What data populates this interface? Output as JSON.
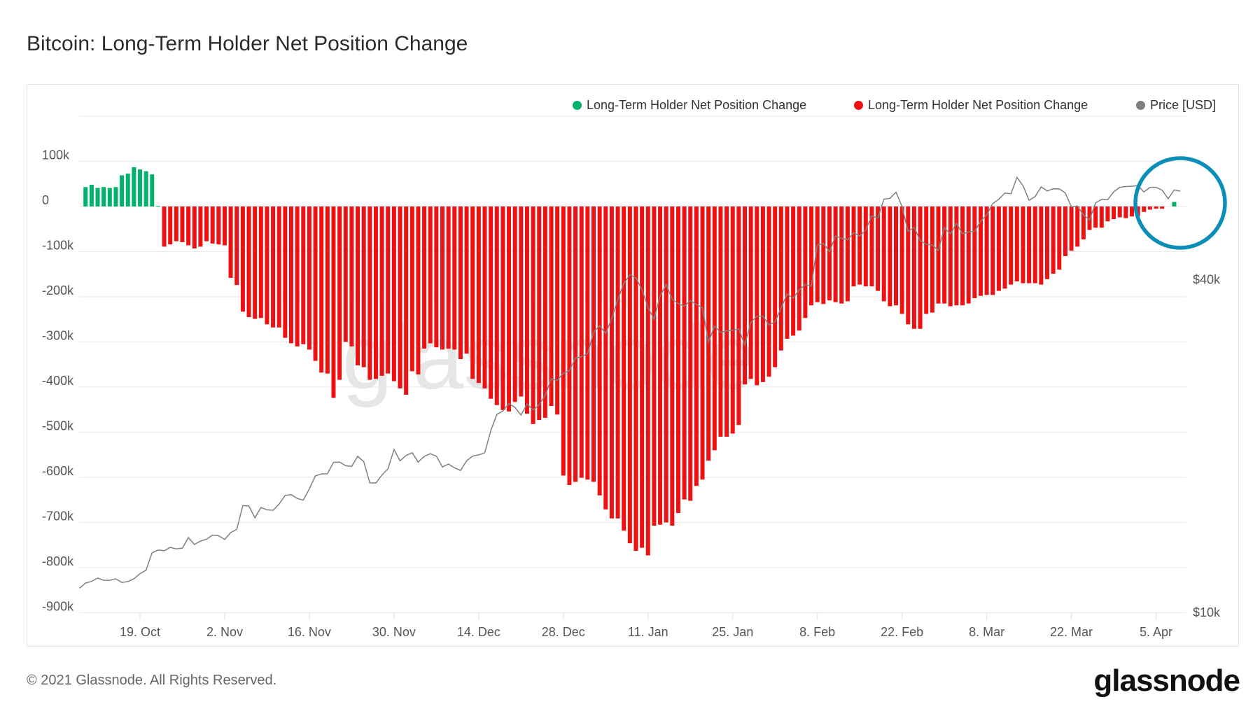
{
  "title": "Bitcoin: Long-Term Holder Net Position Change",
  "footer": "© 2021 Glassnode. All Rights Reserved.",
  "logo": "glassnode",
  "watermark": "glassnode",
  "legend": [
    {
      "label": "Long-Term Holder Net Position Change",
      "color": "#00b26b"
    },
    {
      "label": "Long-Term Holder Net Position Change",
      "color": "#ee1111"
    },
    {
      "label": "Price [USD]",
      "color": "#808080"
    }
  ],
  "annotation": {
    "shape": "circle",
    "color": "#0b8fb8"
  },
  "chart_data": {
    "type": "bar+line",
    "title": "Bitcoin: Long-Term Holder Net Position Change",
    "x_ticks": [
      "19. Oct",
      "2. Nov",
      "16. Nov",
      "30. Nov",
      "14. Dec",
      "28. Dec",
      "11. Jan",
      "25. Jan",
      "8. Feb",
      "22. Feb",
      "8. Mar",
      "22. Mar",
      "5. Apr"
    ],
    "x_tick_dates": [
      "2020-10-19",
      "2020-11-02",
      "2020-11-16",
      "2020-11-30",
      "2020-12-14",
      "2020-12-28",
      "2021-01-11",
      "2021-01-25",
      "2021-02-08",
      "2021-02-22",
      "2021-03-08",
      "2021-03-22",
      "2021-04-05"
    ],
    "y_left": {
      "ticks": [
        200000,
        100000,
        0,
        -100000,
        -200000,
        -300000,
        -400000,
        -500000,
        -600000,
        -700000,
        -800000,
        -900000
      ],
      "tick_labels": [
        "",
        "100k",
        "0",
        "-100k",
        "-200k",
        "-300k",
        "-400k",
        "-500k",
        "-600k",
        "-700k",
        "-800k",
        "-900k"
      ],
      "ylim": [
        -900000,
        200000
      ]
    },
    "y_right": {
      "scale": "log",
      "tick_labels": [
        "$40k",
        "$10k"
      ],
      "tick_values": [
        40000,
        10000
      ]
    },
    "grid": true,
    "legend_position": "top-right",
    "positive_color": "#00b26b",
    "negative_color": "#ee1111",
    "price_color": "#808080",
    "dates": [
      "2020-10-09",
      "2020-10-10",
      "2020-10-11",
      "2020-10-12",
      "2020-10-13",
      "2020-10-14",
      "2020-10-15",
      "2020-10-16",
      "2020-10-17",
      "2020-10-18",
      "2020-10-19",
      "2020-10-20",
      "2020-10-21",
      "2020-10-22",
      "2020-10-23",
      "2020-10-24",
      "2020-10-25",
      "2020-10-26",
      "2020-10-27",
      "2020-10-28",
      "2020-10-29",
      "2020-10-30",
      "2020-10-31",
      "2020-11-01",
      "2020-11-02",
      "2020-11-03",
      "2020-11-04",
      "2020-11-05",
      "2020-11-06",
      "2020-11-07",
      "2020-11-08",
      "2020-11-09",
      "2020-11-10",
      "2020-11-11",
      "2020-11-12",
      "2020-11-13",
      "2020-11-14",
      "2020-11-15",
      "2020-11-16",
      "2020-11-17",
      "2020-11-18",
      "2020-11-19",
      "2020-11-20",
      "2020-11-21",
      "2020-11-22",
      "2020-11-23",
      "2020-11-24",
      "2020-11-25",
      "2020-11-26",
      "2020-11-27",
      "2020-11-28",
      "2020-11-29",
      "2020-11-30",
      "2020-12-01",
      "2020-12-02",
      "2020-12-03",
      "2020-12-04",
      "2020-12-05",
      "2020-12-06",
      "2020-12-07",
      "2020-12-08",
      "2020-12-09",
      "2020-12-10",
      "2020-12-11",
      "2020-12-12",
      "2020-12-13",
      "2020-12-14",
      "2020-12-15",
      "2020-12-16",
      "2020-12-17",
      "2020-12-18",
      "2020-12-19",
      "2020-12-20",
      "2020-12-21",
      "2020-12-22",
      "2020-12-23",
      "2020-12-24",
      "2020-12-25",
      "2020-12-26",
      "2020-12-27",
      "2020-12-28",
      "2020-12-29",
      "2020-12-30",
      "2020-12-31",
      "2021-01-01",
      "2021-01-02",
      "2021-01-03",
      "2021-01-04",
      "2021-01-05",
      "2021-01-06",
      "2021-01-07",
      "2021-01-08",
      "2021-01-09",
      "2021-01-10",
      "2021-01-11",
      "2021-01-12",
      "2021-01-13",
      "2021-01-14",
      "2021-01-15",
      "2021-01-16",
      "2021-01-17",
      "2021-01-18",
      "2021-01-19",
      "2021-01-20",
      "2021-01-21",
      "2021-01-22",
      "2021-01-23",
      "2021-01-24",
      "2021-01-25",
      "2021-01-26",
      "2021-01-27",
      "2021-01-28",
      "2021-01-29",
      "2021-01-30",
      "2021-01-31",
      "2021-02-01",
      "2021-02-02",
      "2021-02-03",
      "2021-02-04",
      "2021-02-05",
      "2021-02-06",
      "2021-02-07",
      "2021-02-08",
      "2021-02-09",
      "2021-02-10",
      "2021-02-11",
      "2021-02-12",
      "2021-02-13",
      "2021-02-14",
      "2021-02-15",
      "2021-02-16",
      "2021-02-17",
      "2021-02-18",
      "2021-02-19",
      "2021-02-20",
      "2021-02-21",
      "2021-02-22",
      "2021-02-23",
      "2021-02-24",
      "2021-02-25",
      "2021-02-26",
      "2021-02-27",
      "2021-02-28",
      "2021-03-01",
      "2021-03-02",
      "2021-03-03",
      "2021-03-04",
      "2021-03-05",
      "2021-03-06",
      "2021-03-07",
      "2021-03-08",
      "2021-03-09",
      "2021-03-10",
      "2021-03-11",
      "2021-03-12",
      "2021-03-13",
      "2021-03-14",
      "2021-03-15",
      "2021-03-16",
      "2021-03-17",
      "2021-03-18",
      "2021-03-19",
      "2021-03-20",
      "2021-03-21",
      "2021-03-22",
      "2021-03-23",
      "2021-03-24",
      "2021-03-25",
      "2021-03-26",
      "2021-03-27",
      "2021-03-28",
      "2021-03-29",
      "2021-03-30",
      "2021-03-31",
      "2021-04-01",
      "2021-04-02",
      "2021-04-03",
      "2021-04-04",
      "2021-04-05",
      "2021-04-06",
      "2021-04-07",
      "2021-04-08",
      "2021-04-09"
    ],
    "series": [
      {
        "name": "Long-Term Holder Net Position Change",
        "type": "bar",
        "axis": "left",
        "values": [
          null,
          43000,
          48000,
          41000,
          43000,
          41000,
          43000,
          69000,
          73000,
          87000,
          82000,
          78000,
          71000,
          1000,
          -89000,
          -84000,
          -77000,
          -79000,
          -86000,
          -93000,
          -89000,
          -77000,
          -82000,
          -84000,
          -86000,
          -158000,
          -174000,
          -233000,
          -245000,
          -249000,
          -247000,
          -261000,
          -268000,
          -268000,
          -291000,
          -303000,
          -310000,
          -305000,
          -317000,
          -342000,
          -368000,
          -370000,
          -424000,
          -384000,
          -300000,
          -310000,
          -352000,
          -356000,
          -384000,
          -382000,
          -375000,
          -370000,
          -387000,
          -403000,
          -417000,
          -365000,
          -372000,
          -315000,
          -303000,
          -312000,
          -317000,
          -315000,
          -317000,
          -338000,
          -326000,
          -382000,
          -391000,
          -403000,
          -426000,
          -440000,
          -451000,
          -454000,
          -433000,
          -421000,
          -459000,
          -482000,
          -473000,
          -468000,
          -442000,
          -461000,
          -596000,
          -617000,
          -610000,
          -601000,
          -605000,
          -610000,
          -640000,
          -671000,
          -691000,
          -691000,
          -718000,
          -746000,
          -763000,
          -756000,
          -773000,
          -707000,
          -705000,
          -700000,
          -707000,
          -679000,
          -649000,
          -652000,
          -619000,
          -605000,
          -563000,
          -540000,
          -510000,
          -510000,
          -503000,
          -484000,
          -394000,
          -382000,
          -396000,
          -389000,
          -377000,
          -356000,
          -319000,
          -293000,
          -286000,
          -275000,
          -247000,
          -219000,
          -212000,
          -216000,
          -208000,
          -212000,
          -215000,
          -210000,
          -177000,
          -173000,
          -177000,
          -177000,
          -187000,
          -210000,
          -221000,
          -219000,
          -238000,
          -261000,
          -271000,
          -271000,
          -238000,
          -235000,
          -215000,
          -215000,
          -221000,
          -219000,
          -219000,
          -215000,
          -203000,
          -198000,
          -196000,
          -196000,
          -187000,
          -182000,
          -173000,
          -166000,
          -170000,
          -170000,
          -170000,
          -173000,
          -161000,
          -149000,
          -140000,
          -110000,
          -98000,
          -89000,
          -73000,
          -52000,
          -47000,
          -47000,
          -33000,
          -28000,
          -24000,
          -26000,
          -22000,
          -21000,
          -12000,
          -7000,
          -5000,
          -5000,
          0,
          10000,
          null
        ]
      },
      {
        "name": "Price [USD]",
        "type": "line",
        "axis": "right",
        "values": [
          11060,
          11300,
          11380,
          11540,
          11430,
          11430,
          11500,
          11330,
          11370,
          11510,
          11750,
          11920,
          12820,
          12970,
          12930,
          13110,
          13030,
          13070,
          13650,
          13270,
          13460,
          13560,
          13800,
          13760,
          13550,
          13950,
          14130,
          15600,
          15580,
          14830,
          15480,
          15330,
          15300,
          15700,
          16280,
          16330,
          16070,
          15960,
          16730,
          17660,
          17800,
          17820,
          18680,
          18710,
          18420,
          18370,
          19160,
          18730,
          17150,
          17140,
          17720,
          18180,
          19700,
          18800,
          19220,
          19450,
          18700,
          19150,
          19360,
          19170,
          18320,
          18550,
          18260,
          18060,
          18800,
          19170,
          19270,
          19440,
          21310,
          22800,
          23140,
          23870,
          23480,
          22750,
          23820,
          23240,
          23730,
          24710,
          26440,
          26280,
          27080,
          27360,
          28840,
          29000,
          29370,
          32130,
          33000,
          31970,
          33990,
          36820,
          39370,
          40800,
          40250,
          38350,
          35570,
          33920,
          37320,
          39190,
          36830,
          36180,
          35790,
          36630,
          36070,
          35550,
          30830,
          32950,
          32080,
          32290,
          32370,
          32570,
          30440,
          33460,
          34320,
          34320,
          33110,
          33540,
          35520,
          37660,
          37000,
          38300,
          39200,
          38900,
          46200,
          46480,
          44920,
          47970,
          47500,
          47180,
          48580,
          47940,
          49180,
          52150,
          51680,
          55890,
          56100,
          57540,
          54200,
          48890,
          49730,
          47010,
          46340,
          46190,
          45140,
          49630,
          48380,
          50540,
          48380,
          48760,
          48880,
          51000,
          52380,
          54880,
          55880,
          57330,
          57200,
          61200,
          59140,
          55650,
          56500,
          58820,
          57850,
          58350,
          58330,
          57350,
          54090,
          54340,
          52300,
          51300,
          55030,
          55840,
          55780,
          57630,
          58730,
          58920,
          58990,
          59130,
          57600,
          58730,
          58730,
          58040,
          56000,
          58090,
          57800
        ]
      }
    ]
  }
}
